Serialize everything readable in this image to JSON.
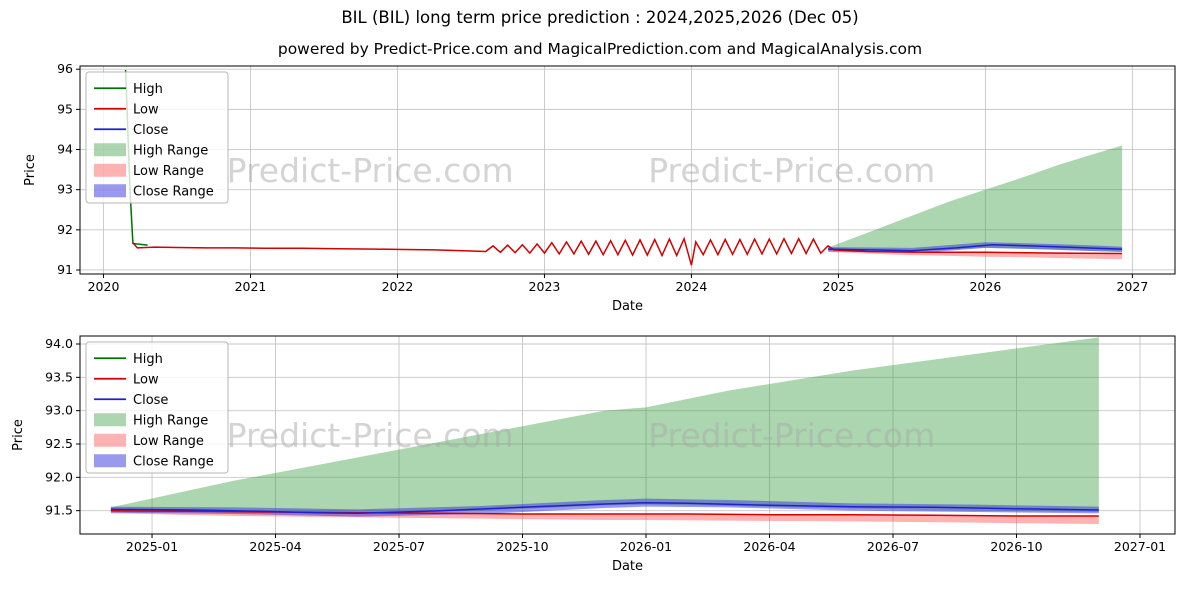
{
  "page": {
    "title": "BIL (BIL) long term price prediction : 2024,2025,2026 (Dec 05)",
    "subtitle": "powered by Predict-Price.com and MagicalPrediction.com and MagicalAnalysis.com",
    "watermark": "Predict-Price.com"
  },
  "colors": {
    "grid": "#c6c6c6",
    "axis": "#000000",
    "watermark": "#aaaaaa",
    "high": "#007000",
    "low": "#d40000",
    "close": "#2121cc",
    "high_range": "#3a9e41",
    "low_range": "#ff5555",
    "close_range": "#3333dd"
  },
  "legend": [
    {
      "label": "High",
      "type": "line",
      "color": "#007000"
    },
    {
      "label": "Low",
      "type": "line",
      "color": "#d40000"
    },
    {
      "label": "Close",
      "type": "line",
      "color": "#2121cc"
    },
    {
      "label": "High Range",
      "type": "patch",
      "color": "#3a9e41",
      "opacity": 0.42
    },
    {
      "label": "Low Range",
      "type": "patch",
      "color": "#ff5555",
      "opacity": 0.45
    },
    {
      "label": "Close Range",
      "type": "patch",
      "color": "#3333dd",
      "opacity": 0.5
    }
  ],
  "chart_data": [
    {
      "type": "line",
      "title": "BIL long term history and prediction",
      "xlabel": "Date",
      "ylabel": "Price",
      "xlim": [
        2019.84,
        2027.29
      ],
      "ylim": [
        90.9,
        96.08
      ],
      "xticks": [
        2020,
        2021,
        2022,
        2023,
        2024,
        2025,
        2026,
        2027
      ],
      "xtick_labels": [
        "2020",
        "2021",
        "2022",
        "2023",
        "2024",
        "2025",
        "2026",
        "2027"
      ],
      "yticks": [
        91,
        92,
        93,
        94,
        95,
        96
      ],
      "ytick_labels": [
        "91",
        "92",
        "93",
        "94",
        "95",
        "96"
      ],
      "series": [
        {
          "name": "High",
          "color": "#007000",
          "points": [
            [
              2020.15,
              95.98
            ],
            [
              2020.18,
              93.0
            ],
            [
              2020.2,
              91.66
            ],
            [
              2020.3,
              91.62
            ]
          ]
        },
        {
          "name": "Low",
          "color": "#d40000",
          "points": [
            [
              2020.2,
              91.68
            ],
            [
              2020.23,
              91.55
            ],
            [
              2020.35,
              91.57
            ],
            [
              2020.5,
              91.56
            ],
            [
              2020.7,
              91.55
            ],
            [
              2020.9,
              91.55
            ],
            [
              2021.1,
              91.54
            ],
            [
              2021.35,
              91.54
            ],
            [
              2021.6,
              91.53
            ],
            [
              2021.85,
              91.52
            ],
            [
              2022.05,
              91.51
            ],
            [
              2022.25,
              91.5
            ],
            [
              2022.45,
              91.48
            ],
            [
              2022.6,
              91.46
            ],
            [
              2022.65,
              91.6
            ],
            [
              2022.7,
              91.44
            ],
            [
              2022.75,
              91.62
            ],
            [
              2022.8,
              91.43
            ],
            [
              2022.85,
              91.63
            ],
            [
              2022.9,
              91.42
            ],
            [
              2022.95,
              91.65
            ],
            [
              2023.0,
              91.42
            ],
            [
              2023.05,
              91.68
            ],
            [
              2023.1,
              91.4
            ],
            [
              2023.15,
              91.7
            ],
            [
              2023.2,
              91.4
            ],
            [
              2023.25,
              91.72
            ],
            [
              2023.3,
              91.39
            ],
            [
              2023.35,
              91.72
            ],
            [
              2023.4,
              91.38
            ],
            [
              2023.45,
              91.73
            ],
            [
              2023.5,
              91.38
            ],
            [
              2023.55,
              91.74
            ],
            [
              2023.6,
              91.37
            ],
            [
              2023.65,
              91.75
            ],
            [
              2023.7,
              91.37
            ],
            [
              2023.75,
              91.76
            ],
            [
              2023.8,
              91.36
            ],
            [
              2023.85,
              91.77
            ],
            [
              2023.9,
              91.36
            ],
            [
              2023.95,
              91.78
            ],
            [
              2024.0,
              91.12
            ],
            [
              2024.03,
              91.7
            ],
            [
              2024.08,
              91.38
            ],
            [
              2024.13,
              91.75
            ],
            [
              2024.18,
              91.38
            ],
            [
              2024.23,
              91.76
            ],
            [
              2024.28,
              91.39
            ],
            [
              2024.33,
              91.76
            ],
            [
              2024.38,
              91.39
            ],
            [
              2024.43,
              91.77
            ],
            [
              2024.48,
              91.4
            ],
            [
              2024.53,
              91.77
            ],
            [
              2024.58,
              91.4
            ],
            [
              2024.63,
              91.78
            ],
            [
              2024.68,
              91.41
            ],
            [
              2024.73,
              91.78
            ],
            [
              2024.78,
              91.41
            ],
            [
              2024.83,
              91.77
            ],
            [
              2024.88,
              91.42
            ],
            [
              2024.93,
              91.6
            ],
            [
              2024.97,
              91.5
            ],
            [
              2025.2,
              91.46
            ],
            [
              2025.6,
              91.44
            ],
            [
              2026.0,
              91.44
            ],
            [
              2026.5,
              91.42
            ],
            [
              2026.93,
              91.41
            ]
          ]
        },
        {
          "name": "Close",
          "color": "#2121cc",
          "points": [
            [
              2024.93,
              91.52
            ],
            [
              2025.2,
              91.5
            ],
            [
              2025.5,
              91.48
            ],
            [
              2025.8,
              91.55
            ],
            [
              2026.05,
              91.63
            ],
            [
              2026.3,
              91.6
            ],
            [
              2026.55,
              91.57
            ],
            [
              2026.75,
              91.54
            ],
            [
              2026.93,
              91.52
            ]
          ]
        }
      ],
      "bands": [
        {
          "name": "High Range",
          "color": "#3a9e41",
          "opacity": 0.42,
          "x": [
            2024.93,
            2025.25,
            2025.5,
            2025.75,
            2026.0,
            2026.25,
            2026.5,
            2026.75,
            2026.93
          ],
          "upper": [
            91.56,
            92.0,
            92.35,
            92.7,
            93.0,
            93.3,
            93.62,
            93.9,
            94.1
          ],
          "lower": [
            91.5,
            91.48,
            91.47,
            91.5,
            91.55,
            91.53,
            91.5,
            91.47,
            91.45
          ]
        },
        {
          "name": "Low Range",
          "color": "#ff5555",
          "opacity": 0.45,
          "x": [
            2024.93,
            2025.25,
            2025.5,
            2025.75,
            2026.0,
            2026.25,
            2026.5,
            2026.75,
            2026.93
          ],
          "upper": [
            91.5,
            91.47,
            91.46,
            91.45,
            91.44,
            91.43,
            91.42,
            91.41,
            91.4
          ],
          "lower": [
            91.45,
            91.4,
            91.37,
            91.35,
            91.33,
            91.32,
            91.3,
            91.28,
            91.27
          ]
        },
        {
          "name": "Close Range",
          "color": "#3333dd",
          "opacity": 0.5,
          "x": [
            2024.93,
            2025.25,
            2025.5,
            2025.75,
            2026.0,
            2026.25,
            2026.5,
            2026.75,
            2026.93
          ],
          "upper": [
            91.57,
            91.56,
            91.55,
            91.62,
            91.69,
            91.67,
            91.64,
            91.61,
            91.58
          ],
          "lower": [
            91.46,
            91.44,
            91.42,
            91.48,
            91.55,
            91.53,
            91.5,
            91.47,
            91.45
          ]
        }
      ]
    },
    {
      "type": "line",
      "title": "BIL forecast detail 2025-2027",
      "xlabel": "Date",
      "ylabel": "Price",
      "xlim": [
        -0.75,
        25.85
      ],
      "ylim": [
        91.15,
        94.12
      ],
      "xticks": [
        1,
        4,
        7,
        10,
        13,
        16,
        19,
        22,
        25
      ],
      "xtick_labels": [
        "2025-01",
        "2025-04",
        "2025-07",
        "2025-10",
        "2026-01",
        "2026-04",
        "2026-07",
        "2026-10",
        "2027-01"
      ],
      "yticks": [
        91.5,
        92.0,
        92.5,
        93.0,
        93.5,
        94.0
      ],
      "ytick_labels": [
        "91.5",
        "92.0",
        "92.5",
        "93.0",
        "93.5",
        "94.0"
      ],
      "series": [
        {
          "name": "High",
          "color": "#007000",
          "points": []
        },
        {
          "name": "Low",
          "color": "#d40000",
          "points": [
            [
              0,
              91.5
            ],
            [
              2,
              91.49
            ],
            [
              4,
              91.48
            ],
            [
              6,
              91.47
            ],
            [
              8,
              91.46
            ],
            [
              10,
              91.45
            ],
            [
              12,
              91.45
            ],
            [
              14,
              91.45
            ],
            [
              16,
              91.44
            ],
            [
              18,
              91.44
            ],
            [
              20,
              91.43
            ],
            [
              22,
              91.42
            ],
            [
              24,
              91.42
            ]
          ]
        },
        {
          "name": "Close",
          "color": "#2121cc",
          "points": [
            [
              0,
              91.52
            ],
            [
              2,
              91.51
            ],
            [
              3,
              91.5
            ],
            [
              5,
              91.47
            ],
            [
              6,
              91.46
            ],
            [
              8,
              91.5
            ],
            [
              10,
              91.55
            ],
            [
              12,
              91.6
            ],
            [
              13,
              91.62
            ],
            [
              14,
              91.61
            ],
            [
              16,
              91.58
            ],
            [
              18,
              91.56
            ],
            [
              20,
              91.55
            ],
            [
              22,
              91.53
            ],
            [
              24,
              91.51
            ]
          ]
        }
      ],
      "bands": [
        {
          "name": "High Range",
          "color": "#3a9e41",
          "opacity": 0.42,
          "x": [
            0,
            3,
            6,
            9,
            12,
            13,
            15,
            18,
            21,
            24
          ],
          "upper": [
            91.55,
            91.95,
            92.3,
            92.65,
            93.0,
            93.05,
            93.3,
            93.6,
            93.85,
            94.1
          ],
          "lower": [
            91.5,
            91.48,
            91.45,
            91.5,
            91.58,
            91.59,
            91.57,
            91.53,
            91.5,
            91.48
          ]
        },
        {
          "name": "Low Range",
          "color": "#ff5555",
          "opacity": 0.45,
          "x": [
            0,
            3,
            6,
            9,
            12,
            13,
            15,
            18,
            21,
            24
          ],
          "upper": [
            91.5,
            91.49,
            91.47,
            91.46,
            91.45,
            91.45,
            91.45,
            91.44,
            91.43,
            91.42
          ],
          "lower": [
            91.46,
            91.42,
            91.4,
            91.38,
            91.36,
            91.36,
            91.35,
            91.34,
            91.32,
            91.3
          ]
        },
        {
          "name": "Close Range",
          "color": "#3333dd",
          "opacity": 0.5,
          "x": [
            0,
            3,
            6,
            9,
            12,
            13,
            15,
            18,
            21,
            24
          ],
          "upper": [
            91.56,
            91.55,
            91.52,
            91.57,
            91.66,
            91.68,
            91.66,
            91.61,
            91.59,
            91.56
          ],
          "lower": [
            91.47,
            91.45,
            91.41,
            91.45,
            91.54,
            91.56,
            91.55,
            91.5,
            91.48,
            91.46
          ]
        }
      ]
    }
  ]
}
